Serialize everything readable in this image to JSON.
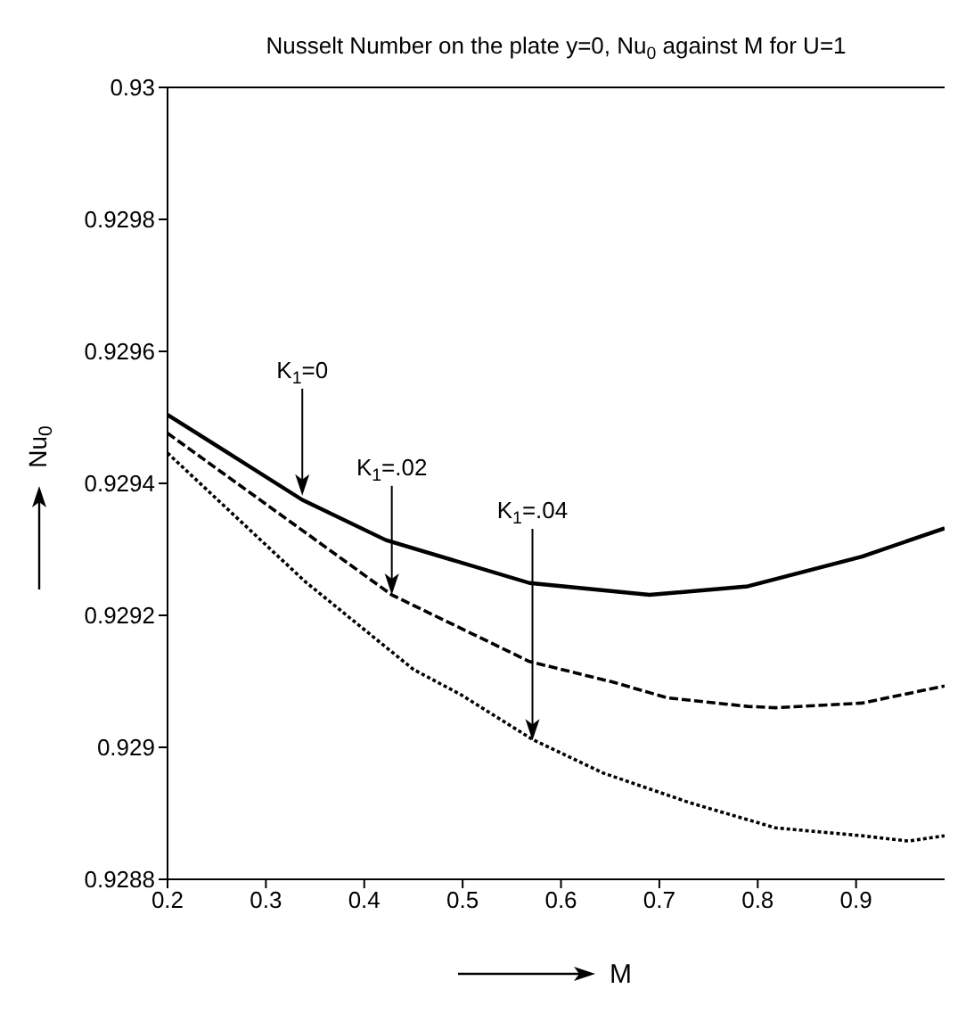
{
  "chart_data": {
    "type": "line",
    "title": "Nusselt Number on the plate y=0, Nu$_{0}$ against M for U=1",
    "xlabel": "M",
    "ylabel": "Nu$_{0}$",
    "xlim": [
      0.2,
      0.99
    ],
    "xticks": [
      0.2,
      0.3,
      0.4,
      0.5,
      0.6,
      0.7,
      0.8,
      0.9
    ],
    "ylim": [
      0.9288,
      0.93
    ],
    "yticks": [
      0.9288,
      0.929,
      0.9292,
      0.9294,
      0.9296,
      0.9298,
      0.93
    ],
    "grid": false,
    "legend": false,
    "marker": "none",
    "series": [
      {
        "color": "#000000",
        "line_style": "solid",
        "x": [
          0.2,
          0.337,
          0.422,
          0.568,
          0.69,
          0.79,
          0.906,
          0.99
        ],
        "values": [
          0.929504,
          0.929375,
          0.929314,
          0.929249,
          0.929231,
          0.929244,
          0.929289,
          0.929332
        ]
      },
      {
        "color": "#000000",
        "line_style": "dashed",
        "x": [
          0.2,
          0.428,
          0.568,
          0.655,
          0.708,
          0.79,
          0.818,
          0.906,
          0.99
        ],
        "values": [
          0.929476,
          0.929231,
          0.92913,
          0.929098,
          0.929075,
          0.929062,
          0.92906,
          0.929067,
          0.929093
        ]
      },
      {
        "color": "#000000",
        "line_style": "dotted",
        "x": [
          0.2,
          0.34,
          0.45,
          0.498,
          0.571,
          0.643,
          0.731,
          0.818,
          0.906,
          0.953,
          0.99
        ],
        "values": [
          0.929446,
          0.929251,
          0.929118,
          0.92908,
          0.929012,
          0.928961,
          0.928916,
          0.928878,
          0.928866,
          0.928858,
          0.928866
        ]
      }
    ],
    "annotations": [
      {
        "text": "K$_{1}$=0",
        "x": 0.337,
        "y": 0.92938
      },
      {
        "text": "K$_{1}$=.02",
        "x": 0.428,
        "y": 0.92923
      },
      {
        "text": "K$_{1}$=.04",
        "x": 0.571,
        "y": 0.92901
      }
    ]
  }
}
